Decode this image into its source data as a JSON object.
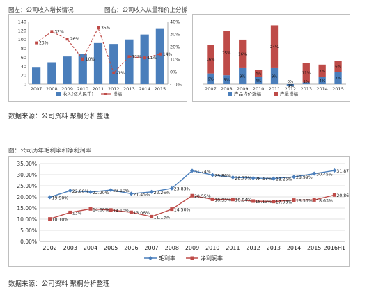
{
  "captions": {
    "left": "图左：公司收入增长情况",
    "right": "图右：公司收入从量和价上分拆",
    "bottom": "图：公司历年毛利率和净利润率"
  },
  "sources": {
    "top": "数据来源：公司资料 聚桐分析整理",
    "bottom": "数据来源：公司资料 聚桐分析整理"
  },
  "colors": {
    "revenue_bar": "#4a7ebb",
    "growth_line": "#be4b48",
    "gross_margin": "#4a7ebb",
    "net_margin": "#be4b48",
    "grid": "#d9d9d9"
  },
  "chart_data": [
    {
      "id": "revenue",
      "type": "bar+line",
      "categories": [
        "2007",
        "2008",
        "2009",
        "2010",
        "2011",
        "2012",
        "2013",
        "2014",
        "2015"
      ],
      "series": [
        {
          "name": "收入(亿人民币)",
          "type": "bar",
          "axis": "left",
          "values": [
            37,
            49,
            62,
            68,
            92,
            90,
            100,
            111,
            125
          ]
        },
        {
          "name": "增幅",
          "type": "line",
          "axis": "right",
          "values": [
            23,
            32,
            26,
            10,
            35,
            -1,
            12,
            11,
            14
          ],
          "labels": [
            "23%",
            "32%",
            "26%",
            "10%",
            "35%",
            "-1%",
            "12%",
            "11%",
            "14%"
          ]
        }
      ],
      "left_ylim": [
        0,
        140
      ],
      "left_ticks": [
        "0",
        "20",
        "40",
        "60",
        "80",
        "100",
        "120",
        "140"
      ],
      "right_ylim": [
        -10,
        40
      ],
      "right_ticks": [
        "-10%",
        "0%",
        "10%",
        "20%",
        "30%",
        "40%"
      ],
      "legend": "bottom",
      "grid": false
    },
    {
      "id": "split",
      "type": "stacked bar",
      "categories": [
        "2007",
        "2008",
        "2009",
        "2010",
        "2011",
        "2012",
        "2013",
        "2014",
        "2015"
      ],
      "series": [
        {
          "name": "产品均价涨幅",
          "values": [
            6,
            5,
            9,
            4,
            9,
            -1,
            1,
            4,
            7
          ],
          "labels": [
            "6%",
            "5%",
            "9%",
            "4%",
            "9%",
            "-1%",
            "1%",
            "4%",
            "7%"
          ]
        },
        {
          "name": "产量增幅",
          "values": [
            16,
            25,
            16,
            4,
            24,
            0,
            11,
            7,
            6
          ],
          "labels": [
            "16%",
            "25%",
            "16%",
            "4%",
            "24%",
            "0%",
            "11%",
            "7%",
            "6%"
          ]
        }
      ],
      "legend": "bottom",
      "grid": false
    },
    {
      "id": "margins",
      "type": "line",
      "categories": [
        "2002",
        "2003",
        "2004",
        "2005",
        "2006",
        "2007",
        "2008",
        "2009",
        "2010",
        "2011",
        "2012",
        "2013",
        "2014",
        "2015",
        "2016H1"
      ],
      "series": [
        {
          "name": "毛利率",
          "values": [
            19.9,
            22.8,
            22.2,
            23.1,
            21.45,
            22.26,
            23.83,
            31.74,
            29.86,
            28.77,
            28.47,
            28.25,
            28.99,
            30.45,
            31.87
          ],
          "labels": [
            "19.90%",
            "22.80%",
            "22.20%",
            "23.10%",
            "21.45%",
            "22.26%",
            "23.83%",
            "31.74%",
            "29.86%",
            "28.77%",
            "28.47%",
            "28.25%",
            "28.99%",
            "30.45%",
            "31.87%"
          ]
        },
        {
          "name": "净利润率",
          "values": [
            10.1,
            13.0,
            14.6,
            14.1,
            13.06,
            11.13,
            14.5,
            20.55,
            18.93,
            18.84,
            18.13,
            17.93,
            18.56,
            18.63,
            20.86
          ],
          "labels": [
            "10.10%",
            "13%",
            "14.60%",
            "14.10%",
            "13.06%",
            "11.13%",
            "14.50%",
            "20.55%",
            "18.93%",
            "18.84%",
            "18.13%",
            "17.93%",
            "18.56%",
            "18.63%",
            "20.86%"
          ]
        }
      ],
      "ylim": [
        0,
        35
      ],
      "y_ticks": [
        "0.00%",
        "5.00%",
        "10.00%",
        "15.00%",
        "20.00%",
        "25.00%",
        "30.00%",
        "35.00%"
      ],
      "legend": "bottom",
      "grid": true
    }
  ]
}
